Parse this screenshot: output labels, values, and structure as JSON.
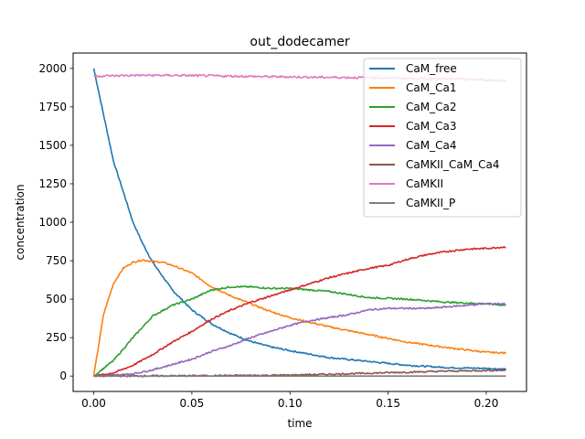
{
  "chart_data": {
    "type": "line",
    "title": "out_dodecamer",
    "xlabel": "time",
    "ylabel": "concentration",
    "xlim": [
      -0.0105,
      0.2205
    ],
    "ylim": [
      -100,
      2100
    ],
    "xticks": [
      "0.00",
      "0.05",
      "0.10",
      "0.15",
      "0.20"
    ],
    "yticks": [
      "0",
      "250",
      "500",
      "750",
      "1000",
      "1250",
      "1500",
      "1750",
      "2000"
    ],
    "legend_position": "top-right",
    "grid": false,
    "series": [
      {
        "name": "CaM_free",
        "color": "#1f77b4",
        "x": [
          0,
          0.005,
          0.01,
          0.015,
          0.02,
          0.025,
          0.03,
          0.04,
          0.05,
          0.06,
          0.07,
          0.08,
          0.09,
          0.1,
          0.12,
          0.14,
          0.16,
          0.18,
          0.2,
          0.21
        ],
        "y": [
          2000,
          1700,
          1400,
          1200,
          1000,
          860,
          740,
          560,
          430,
          340,
          275,
          225,
          190,
          165,
          120,
          95,
          70,
          55,
          50,
          45
        ]
      },
      {
        "name": "CaM_Ca1",
        "color": "#ff7f0e",
        "x": [
          0,
          0.005,
          0.01,
          0.015,
          0.02,
          0.025,
          0.03,
          0.035,
          0.04,
          0.05,
          0.06,
          0.07,
          0.08,
          0.09,
          0.1,
          0.12,
          0.14,
          0.16,
          0.18,
          0.2,
          0.21
        ],
        "y": [
          0,
          400,
          600,
          700,
          740,
          755,
          745,
          740,
          720,
          670,
          580,
          520,
          470,
          420,
          380,
          320,
          270,
          220,
          185,
          155,
          150
        ]
      },
      {
        "name": "CaM_Ca2",
        "color": "#2ca02c",
        "x": [
          0,
          0.01,
          0.02,
          0.03,
          0.04,
          0.05,
          0.06,
          0.07,
          0.08,
          0.09,
          0.1,
          0.11,
          0.12,
          0.14,
          0.16,
          0.18,
          0.2,
          0.21
        ],
        "y": [
          0,
          100,
          250,
          390,
          460,
          500,
          560,
          580,
          580,
          570,
          570,
          560,
          550,
          510,
          500,
          480,
          470,
          460
        ]
      },
      {
        "name": "CaM_Ca3",
        "color": "#d62728",
        "x": [
          0,
          0.01,
          0.02,
          0.03,
          0.04,
          0.05,
          0.06,
          0.07,
          0.08,
          0.09,
          0.1,
          0.11,
          0.12,
          0.13,
          0.14,
          0.15,
          0.16,
          0.17,
          0.18,
          0.19,
          0.2,
          0.21
        ],
        "y": [
          0,
          20,
          70,
          140,
          220,
          290,
          370,
          430,
          480,
          520,
          560,
          600,
          640,
          670,
          700,
          720,
          760,
          790,
          810,
          825,
          830,
          840
        ]
      },
      {
        "name": "CaM_Ca4",
        "color": "#9467bd",
        "x": [
          0,
          0.01,
          0.02,
          0.03,
          0.04,
          0.05,
          0.06,
          0.07,
          0.08,
          0.09,
          0.1,
          0.11,
          0.12,
          0.13,
          0.14,
          0.15,
          0.16,
          0.17,
          0.18,
          0.19,
          0.2,
          0.21
        ],
        "y": [
          0,
          5,
          15,
          40,
          75,
          110,
          160,
          200,
          250,
          290,
          330,
          360,
          380,
          400,
          430,
          440,
          440,
          440,
          450,
          460,
          470,
          470
        ]
      },
      {
        "name": "CaMKII_CaM_Ca4",
        "color": "#8c564b",
        "x": [
          0,
          0.05,
          0.1,
          0.12,
          0.15,
          0.18,
          0.21
        ],
        "y": [
          0,
          2,
          6,
          12,
          22,
          32,
          38
        ]
      },
      {
        "name": "CaMKII",
        "color": "#e377c2",
        "x": [
          0,
          0.02,
          0.04,
          0.06,
          0.08,
          0.1,
          0.12,
          0.14,
          0.16,
          0.18,
          0.2,
          0.21
        ],
        "y": [
          1950,
          1955,
          1955,
          1952,
          1948,
          1945,
          1942,
          1940,
          1935,
          1932,
          1925,
          1920
        ]
      },
      {
        "name": "CaMKII_P",
        "color": "#7f7f7f",
        "x": [
          0,
          0.21
        ],
        "y": [
          0,
          0
        ]
      }
    ]
  }
}
